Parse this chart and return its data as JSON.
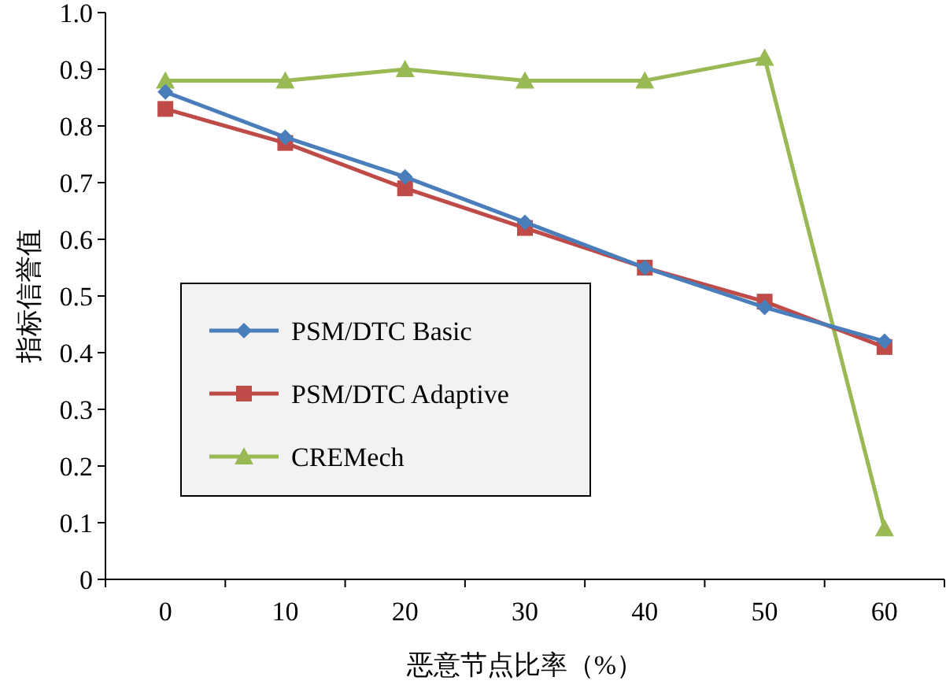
{
  "chart_data": {
    "type": "line",
    "xlabel": "恶意节点比率（%）",
    "ylabel": "指标信誉值",
    "categories": [
      "0",
      "10",
      "20",
      "30",
      "40",
      "50",
      "60"
    ],
    "series": [
      {
        "name": "PSM/DTC Basic",
        "color": "#4a7ebb",
        "marker": "diamond",
        "values": [
          0.86,
          0.78,
          0.71,
          0.63,
          0.55,
          0.48,
          0.42
        ]
      },
      {
        "name": "PSM/DTC Adaptive",
        "color": "#be4b48",
        "marker": "square",
        "values": [
          0.83,
          0.77,
          0.69,
          0.62,
          0.55,
          0.49,
          0.41
        ]
      },
      {
        "name": "CREMech",
        "color": "#98b954",
        "marker": "triangle",
        "values": [
          0.88,
          0.88,
          0.9,
          0.88,
          0.88,
          0.92,
          0.09
        ]
      }
    ],
    "ylim": [
      0,
      1.0
    ],
    "yticks": [
      0,
      {
        "value": 0.1,
        "label": "0.1"
      },
      {
        "value": 0.2,
        "label": "0.2"
      },
      {
        "value": 0.3,
        "label": "0.3"
      },
      {
        "value": 0.4,
        "label": "0.4"
      },
      {
        "value": 0.5,
        "label": "0.5"
      },
      {
        "value": 0.6,
        "label": "0.6"
      },
      {
        "value": 0.7,
        "label": "0.7"
      },
      {
        "value": 0.8,
        "label": "0.8"
      },
      {
        "value": 0.9,
        "label": "0.9"
      },
      {
        "value": 1.0,
        "label": "1.0"
      }
    ],
    "grid": false,
    "legend": "center",
    "line_style": "solid"
  }
}
